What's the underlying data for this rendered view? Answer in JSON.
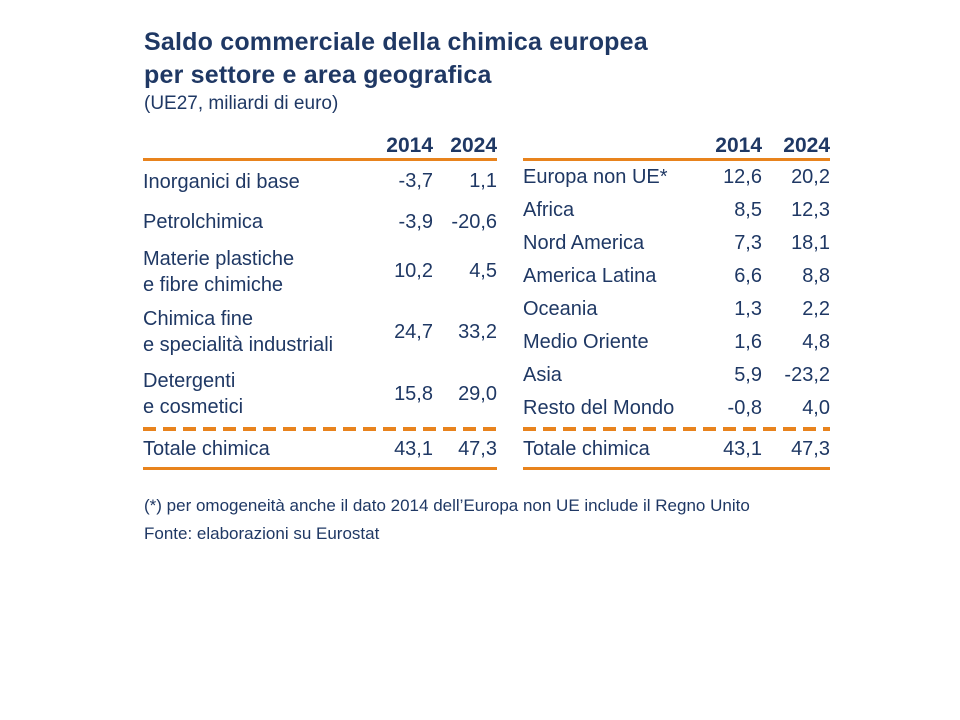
{
  "header": {
    "title_line1": "Saldo commerciale della chimica europea",
    "title_line2": "per settore e area geografica",
    "subtitle": "(UE27, miliardi di euro)"
  },
  "footer": {
    "footnote": "(*) per omogeneità anche il dato 2014 dell’Europa non UE include il Regno Unito",
    "source": "Fonte: elaborazioni su Eurostat"
  },
  "colors": {
    "text_navy": "#1F3864",
    "rule_orange": "#E8831D"
  },
  "chart_data": [
    {
      "type": "table",
      "columns": [
        "2014",
        "2024"
      ],
      "rows": [
        {
          "label": "Inorganici di base",
          "v2014": "-3,7",
          "v2024": "1,1"
        },
        {
          "label": "Petrolchimica",
          "v2014": "-3,9",
          "v2024": "-20,6"
        },
        {
          "label": "Materie plastiche",
          "label2": "e fibre chimiche",
          "v2014": "10,2",
          "v2024": "4,5"
        },
        {
          "label": "Chimica fine",
          "label2": "e specialità industriali",
          "v2014": "24,7",
          "v2024": "33,2"
        },
        {
          "label": "Detergenti",
          "label2": "e cosmetici",
          "v2014": "15,8",
          "v2024": "29,0"
        }
      ],
      "total": {
        "label": "Totale chimica",
        "v2014": "43,1",
        "v2024": "47,3"
      }
    },
    {
      "type": "table",
      "columns": [
        "2014",
        "2024"
      ],
      "rows": [
        {
          "label": "Europa non UE*",
          "v2014": "12,6",
          "v2024": "20,2"
        },
        {
          "label": "Africa",
          "v2014": "8,5",
          "v2024": "12,3"
        },
        {
          "label": "Nord America",
          "v2014": "7,3",
          "v2024": "18,1"
        },
        {
          "label": "America Latina",
          "v2014": "6,6",
          "v2024": "8,8"
        },
        {
          "label": "Oceania",
          "v2014": "1,3",
          "v2024": "2,2"
        },
        {
          "label": "Medio Oriente",
          "v2014": "1,6",
          "v2024": "4,8"
        },
        {
          "label": "Asia",
          "v2014": "5,9",
          "v2024": "-23,2"
        },
        {
          "label": "Resto del Mondo",
          "v2014": "-0,8",
          "v2024": "4,0"
        }
      ],
      "total": {
        "label": "Totale chimica",
        "v2014": "43,1",
        "v2024": "47,3"
      }
    }
  ]
}
